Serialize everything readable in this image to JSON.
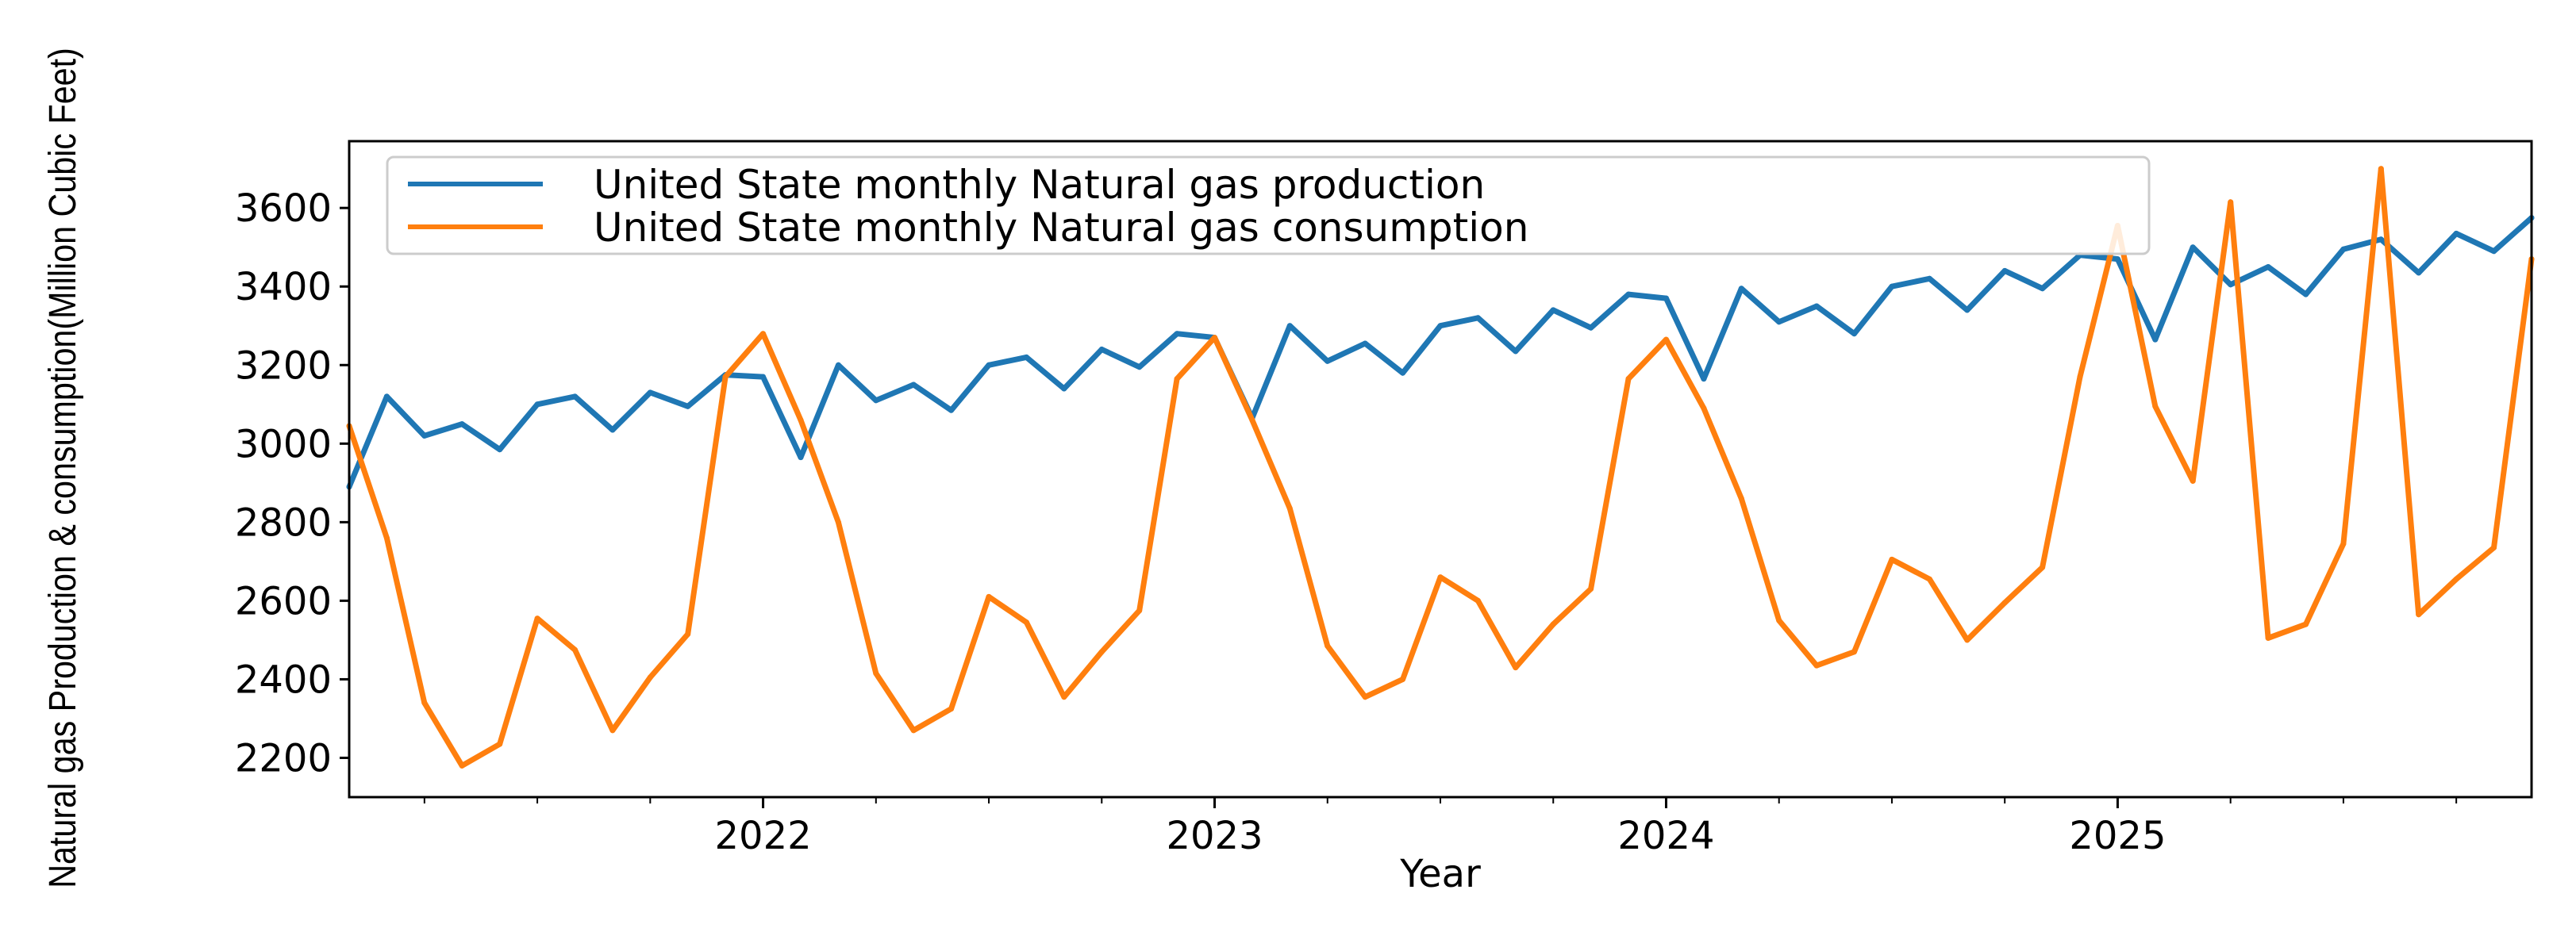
{
  "chart_data": {
    "type": "line",
    "title": "",
    "xlabel": "Year",
    "ylabel": "Natural gas Production & consumption(Million Cubic Feet)",
    "ylim": [
      2100,
      3770
    ],
    "xlim": [
      2021.0833,
      2025.9167
    ],
    "yticks": [
      2200,
      2400,
      2600,
      2800,
      3000,
      3200,
      3400,
      3600
    ],
    "xticks": [
      {
        "value": 2022,
        "label": "2022"
      },
      {
        "value": 2023,
        "label": "2023"
      },
      {
        "value": 2024,
        "label": "2024"
      },
      {
        "value": 2025,
        "label": "2025"
      }
    ],
    "minor_xticks_per_year": 4,
    "grid": false,
    "legend_position": "top-left",
    "series": [
      {
        "name": "United State monthly Natural gas production",
        "color": "#1f77b4",
        "values": [
          2890,
          3120,
          3020,
          3050,
          2985,
          3100,
          3120,
          3035,
          3130,
          3095,
          3175,
          3170,
          2965,
          3200,
          3110,
          3150,
          3085,
          3200,
          3220,
          3140,
          3240,
          3195,
          3280,
          3270,
          3065,
          3300,
          3210,
          3255,
          3180,
          3300,
          3320,
          3235,
          3340,
          3295,
          3380,
          3370,
          3165,
          3395,
          3310,
          3350,
          3280,
          3400,
          3420,
          3340,
          3440,
          3395,
          3480,
          3470,
          3265,
          3500,
          3405,
          3450,
          3380,
          3495,
          3520,
          3435,
          3535,
          3490,
          3575
        ]
      },
      {
        "name": "United State monthly Natural gas consumption",
        "color": "#ff7f0e",
        "values": [
          3045,
          2760,
          2340,
          2180,
          2235,
          2555,
          2475,
          2270,
          2405,
          2515,
          3170,
          3280,
          3060,
          2800,
          2415,
          2270,
          2325,
          2610,
          2545,
          2355,
          2470,
          2575,
          3165,
          3270,
          3060,
          2835,
          2485,
          2355,
          2400,
          2660,
          2600,
          2430,
          2540,
          2630,
          3165,
          3265,
          3090,
          2860,
          2550,
          2435,
          2470,
          2705,
          2655,
          2500,
          2595,
          2685,
          3170,
          3555,
          3095,
          2905,
          3615,
          2505,
          2540,
          2745,
          3700,
          2565,
          2655,
          2735,
          3470
        ]
      }
    ]
  }
}
